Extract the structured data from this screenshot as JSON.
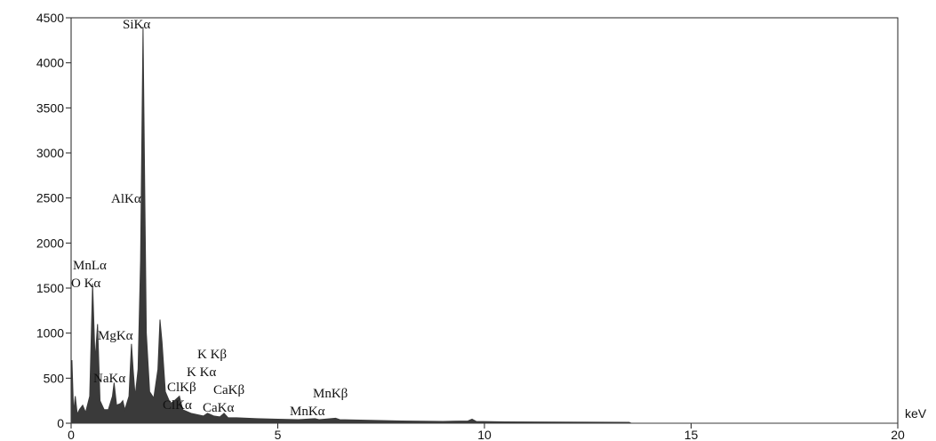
{
  "chart_data": {
    "type": "area",
    "x_label": "keV",
    "x": [
      0,
      0.02,
      0.06,
      0.1,
      0.15,
      0.2,
      0.28,
      0.35,
      0.45,
      0.52,
      0.58,
      0.64,
      0.7,
      0.8,
      0.9,
      1.0,
      1.04,
      1.1,
      1.2,
      1.25,
      1.3,
      1.4,
      1.46,
      1.5,
      1.55,
      1.62,
      1.68,
      1.74,
      1.78,
      1.82,
      1.9,
      2.0,
      2.1,
      2.15,
      2.2,
      2.28,
      2.4,
      2.5,
      2.62,
      2.7,
      2.9,
      3.0,
      3.2,
      3.3,
      3.45,
      3.6,
      3.7,
      3.8,
      4.0,
      4.5,
      5.0,
      5.5,
      5.9,
      6.0,
      6.4,
      6.5,
      7.0,
      8.0,
      9.0,
      9.6,
      9.7,
      9.8,
      10.5,
      12,
      13.5,
      13.55,
      20
    ],
    "values": [
      0,
      700,
      120,
      300,
      100,
      150,
      200,
      120,
      300,
      1550,
      700,
      1100,
      250,
      150,
      150,
      300,
      450,
      200,
      220,
      250,
      150,
      300,
      880,
      600,
      300,
      600,
      1800,
      4400,
      2650,
      1000,
      350,
      280,
      600,
      1150,
      900,
      350,
      220,
      250,
      300,
      150,
      110,
      100,
      80,
      110,
      80,
      70,
      110,
      60,
      60,
      50,
      45,
      40,
      50,
      40,
      55,
      40,
      35,
      25,
      20,
      25,
      45,
      20,
      15,
      12,
      10,
      0,
      0
    ],
    "color": "#3a3a3a",
    "xlim": [
      0,
      20
    ],
    "xticks": [
      0,
      5,
      10,
      15,
      20
    ],
    "ylim": [
      0,
      4500
    ],
    "yticks": [
      0,
      500,
      1000,
      1500,
      2000,
      2500,
      3000,
      3500,
      4000,
      4500
    ],
    "annotations": [
      "SiKα",
      "AlKα",
      "MnLα",
      "O Kα",
      "MgKα",
      "NaKα",
      "K Kβ",
      "K Kα",
      "ClKβ",
      "CaKβ",
      "ClKα",
      "CaKα",
      "MnKβ",
      "MnKα"
    ]
  }
}
